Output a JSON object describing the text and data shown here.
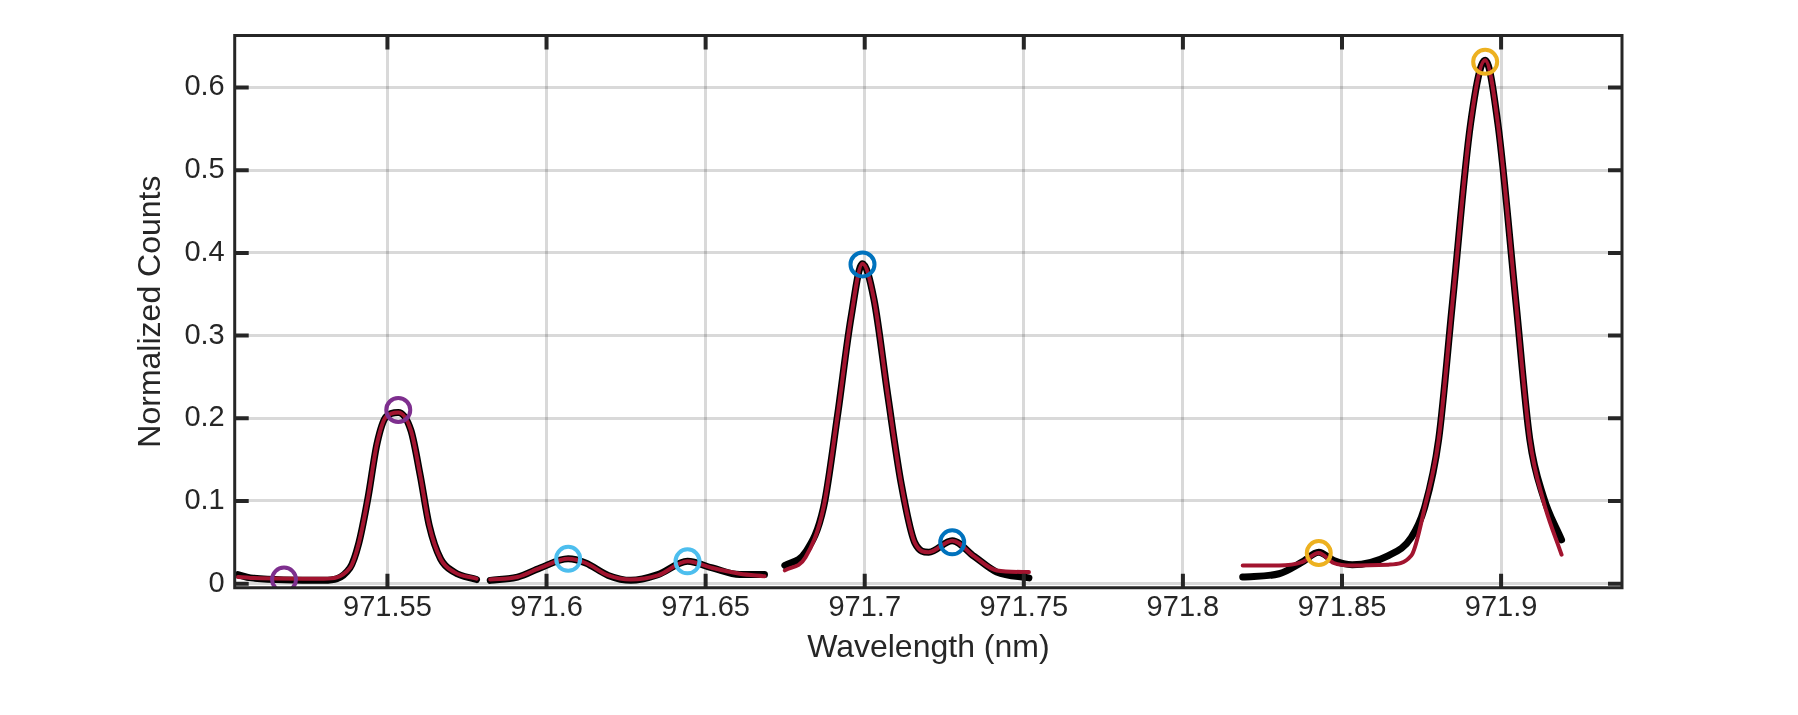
{
  "chart_data": {
    "type": "line",
    "xlabel": "Wavelength (nm)",
    "ylabel": "Normalized Counts",
    "xlim": [
      971.502,
      971.938
    ],
    "ylim": [
      -0.005,
      0.663
    ],
    "xticks": [
      971.55,
      971.6,
      971.65,
      971.7,
      971.75,
      971.8,
      971.85,
      971.9
    ],
    "yticks": [
      0,
      0.1,
      0.2,
      0.3,
      0.4,
      0.5,
      0.6
    ],
    "grid": true,
    "legend": false,
    "marker": "none",
    "line_style": "solid",
    "series": [
      {
        "color": "#000000",
        "type": "line",
        "x": [
          971.503,
          971.507,
          971.53,
          971.5382,
          971.541,
          971.5439,
          971.5467,
          971.5496,
          971.5534,
          971.5574,
          971.5603,
          971.5631,
          971.5667,
          971.571,
          971.578,
          971.58,
          971.5823,
          971.5909,
          971.598,
          971.6068,
          971.6123,
          971.6194,
          971.6265,
          971.635,
          971.6443,
          971.6521,
          971.6607,
          971.6685,
          971.671,
          971.6749,
          971.6814,
          971.6871,
          971.6914,
          971.6957,
          971.6993,
          971.7029,
          971.7072,
          971.7115,
          971.7158,
          971.7201,
          971.7275,
          971.7344,
          971.7415,
          971.7516,
          971.78,
          971.8188,
          971.8302,
          971.8374,
          971.8427,
          971.8474,
          971.8532,
          971.8646,
          971.8718,
          971.8761,
          971.8804,
          971.8847,
          971.8904,
          971.895,
          971.899,
          971.9047,
          971.909,
          971.9133,
          971.919
        ],
        "values": [
          0.011,
          0.007,
          0.004,
          0.019,
          0.049,
          0.104,
          0.169,
          0.202,
          0.207,
          0.185,
          0.131,
          0.071,
          0.03,
          0.014,
          0.005,
          null,
          0.004,
          0.008,
          0.019,
          0.03,
          0.025,
          0.01,
          0.004,
          0.011,
          0.027,
          0.019,
          0.011,
          0.011,
          null,
          0.022,
          0.038,
          0.093,
          0.202,
          0.322,
          0.387,
          0.344,
          0.229,
          0.12,
          0.049,
          0.038,
          0.052,
          0.033,
          0.014,
          0.007,
          null,
          0.008,
          0.012,
          0.026,
          0.038,
          0.028,
          0.023,
          0.034,
          0.056,
          0.094,
          0.175,
          0.339,
          0.556,
          0.633,
          0.556,
          0.339,
          0.175,
          0.105,
          0.053
        ]
      },
      {
        "color": "#a2142f",
        "type": "line",
        "x": [
          971.503,
          971.507,
          971.53,
          971.5382,
          971.541,
          971.5439,
          971.5467,
          971.5496,
          971.5534,
          971.5574,
          971.5603,
          971.5631,
          971.5667,
          971.571,
          971.578,
          971.58,
          971.5823,
          971.5909,
          971.598,
          971.6068,
          971.6123,
          971.6194,
          971.6265,
          971.635,
          971.6443,
          971.6521,
          971.6607,
          971.6685,
          971.671,
          971.6749,
          971.6814,
          971.6871,
          971.6914,
          971.6957,
          971.6993,
          971.7029,
          971.7072,
          971.7115,
          971.7158,
          971.7201,
          971.7275,
          971.7344,
          971.7415,
          971.7516,
          971.78,
          971.8188,
          971.8302,
          971.8374,
          971.8427,
          971.8474,
          971.8532,
          971.8646,
          971.8718,
          971.8761,
          971.8804,
          971.8847,
          971.8904,
          971.895,
          971.899,
          971.9047,
          971.909,
          971.9133,
          971.919
        ],
        "values": [
          0.008,
          0.007,
          0.006,
          0.019,
          0.049,
          0.104,
          0.169,
          0.202,
          0.207,
          0.185,
          0.131,
          0.071,
          0.03,
          0.014,
          0.006,
          null,
          0.005,
          0.008,
          0.019,
          0.03,
          0.025,
          0.01,
          0.005,
          0.01,
          0.027,
          0.019,
          0.012,
          0.009,
          null,
          0.016,
          0.032,
          0.093,
          0.202,
          0.322,
          0.387,
          0.344,
          0.229,
          0.12,
          0.049,
          0.038,
          0.052,
          0.033,
          0.016,
          0.014,
          null,
          0.022,
          0.022,
          0.026,
          0.037,
          0.025,
          0.022,
          0.023,
          0.034,
          0.094,
          0.175,
          0.339,
          0.556,
          0.633,
          0.556,
          0.339,
          0.175,
          0.1,
          0.035
        ]
      },
      {
        "color": "#7e2f8e",
        "type": "scatter",
        "marker": "circle",
        "x": [
          971.5175,
          971.5534
        ],
        "values": [
          0.005,
          0.21
        ]
      },
      {
        "color": "#4dbeee",
        "type": "scatter",
        "marker": "circle",
        "x": [
          971.6068,
          971.6443
        ],
        "values": [
          0.03,
          0.027
        ]
      },
      {
        "color": "#0072bd",
        "type": "scatter",
        "marker": "circle",
        "x": [
          971.6993,
          971.7275
        ],
        "values": [
          0.386,
          0.05
        ]
      },
      {
        "color": "#edb120",
        "type": "scatter",
        "marker": "circle",
        "x": [
          971.8427,
          971.895
        ],
        "values": [
          0.037,
          0.631
        ]
      }
    ]
  }
}
